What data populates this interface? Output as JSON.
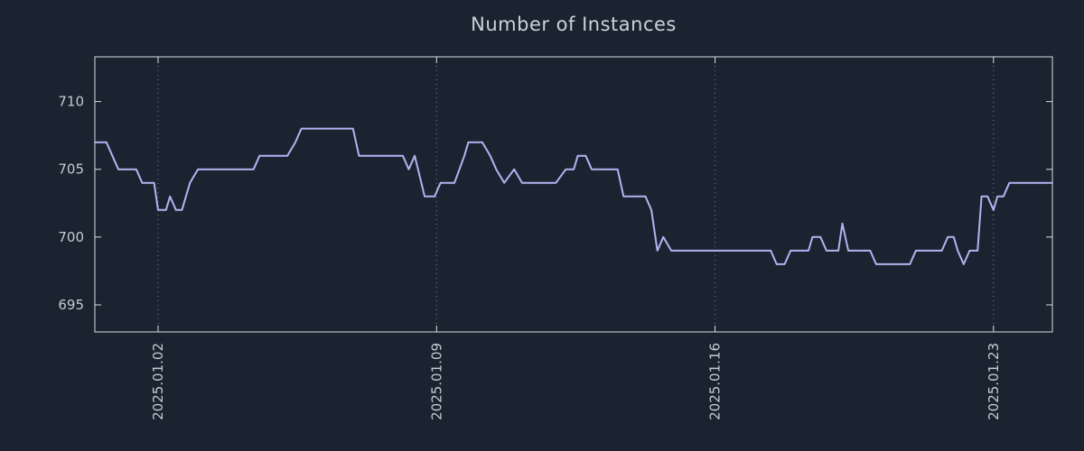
{
  "colors": {
    "background": "#1b2330",
    "axis": "#d9dde3",
    "grid": "#7b828c",
    "line": "#b3b3f1",
    "title_text": "#ccd2da",
    "tick_text": "#c5cbd3"
  },
  "chart_data": {
    "type": "line",
    "title": "Number of Instances",
    "xlabel": "",
    "ylabel": "",
    "xlim": [
      0.41,
      24.48
    ],
    "ylim": [
      693.0,
      713.3
    ],
    "yticks": [
      695,
      700,
      705,
      710
    ],
    "xticks": [
      {
        "value": 2,
        "label": "2025.01.02"
      },
      {
        "value": 9,
        "label": "2025.01.09"
      },
      {
        "value": 16,
        "label": "2025.01.16"
      },
      {
        "value": 23,
        "label": "2025.01.23"
      }
    ],
    "grid": "vertical-dotted",
    "legend": "none",
    "series": [
      {
        "name": "instances",
        "color": "#b3b3f1",
        "x": [
          0.41,
          0.7,
          0.85,
          1.0,
          1.45,
          1.6,
          1.9,
          2.0,
          2.2,
          2.3,
          2.45,
          2.6,
          2.8,
          3.0,
          4.4,
          4.55,
          5.25,
          5.45,
          5.6,
          6.9,
          7.05,
          8.15,
          8.3,
          8.45,
          8.7,
          8.95,
          9.1,
          9.45,
          9.7,
          9.8,
          10.15,
          10.35,
          10.5,
          10.7,
          10.95,
          11.15,
          12.0,
          12.25,
          12.45,
          12.55,
          12.75,
          12.9,
          13.55,
          13.7,
          14.25,
          14.4,
          14.55,
          14.7,
          14.9,
          17.4,
          17.55,
          17.75,
          17.9,
          18.35,
          18.45,
          18.65,
          18.8,
          19.1,
          19.2,
          19.35,
          19.9,
          20.05,
          20.9,
          21.05,
          21.7,
          21.85,
          22.0,
          22.1,
          22.25,
          22.4,
          22.6,
          22.7,
          22.85,
          23.0,
          23.1,
          23.25,
          23.4,
          24.48
        ],
        "y": [
          707,
          707,
          706,
          705,
          705,
          704,
          704,
          702,
          702,
          703,
          702,
          702,
          704,
          705,
          705,
          706,
          706,
          707,
          708,
          708,
          706,
          706,
          705,
          706,
          703,
          703,
          704,
          704,
          706,
          707,
          707,
          706,
          705,
          704,
          705,
          704,
          704,
          705,
          705,
          706,
          706,
          705,
          705,
          703,
          703,
          702,
          699,
          700,
          699,
          699,
          698,
          698,
          699,
          699,
          700,
          700,
          699,
          699,
          701,
          699,
          699,
          698,
          698,
          699,
          699,
          700,
          700,
          699,
          698,
          699,
          699,
          703,
          703,
          702,
          703,
          703,
          704,
          704
        ]
      }
    ]
  }
}
